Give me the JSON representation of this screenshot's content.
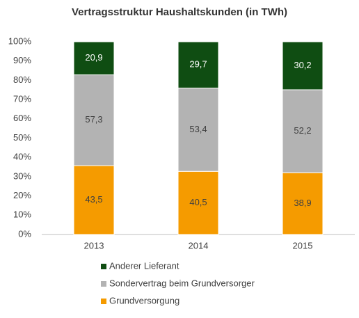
{
  "chart_data": {
    "type": "stacked_percent_bar",
    "title": "Vertragsstruktur Haushaltskunden (in TWh)",
    "categories": [
      "2013",
      "2014",
      "2015"
    ],
    "series": [
      {
        "name": "Grundversorgung",
        "color": "#f59b00",
        "label_color": "#404040",
        "values": [
          43.5,
          40.5,
          38.9
        ],
        "value_labels": [
          "43,5",
          "40,5",
          "38,9"
        ]
      },
      {
        "name": "Sondervertrag beim Grundversorger",
        "color": "#b3b3b3",
        "label_color": "#404040",
        "values": [
          57.3,
          53.4,
          52.2
        ],
        "value_labels": [
          "57,3",
          "53,4",
          "52,2"
        ]
      },
      {
        "name": "Anderer Lieferant",
        "color": "#0f4d12",
        "label_color": "#ffffff",
        "values": [
          20.9,
          29.7,
          30.2
        ],
        "value_labels": [
          "20,9",
          "29,7",
          "30,2"
        ]
      }
    ],
    "ylim": [
      0,
      100
    ],
    "yticks": [
      {
        "value": 0,
        "label": "0%"
      },
      {
        "value": 10,
        "label": "10%"
      },
      {
        "value": 20,
        "label": "20%"
      },
      {
        "value": 30,
        "label": "30%"
      },
      {
        "value": 40,
        "label": "40%"
      },
      {
        "value": 50,
        "label": "50%"
      },
      {
        "value": 60,
        "label": "60%"
      },
      {
        "value": 70,
        "label": "70%"
      },
      {
        "value": 80,
        "label": "80%"
      },
      {
        "value": 90,
        "label": "90%"
      },
      {
        "value": 100,
        "label": "100%"
      }
    ],
    "legend": "bottom"
  }
}
